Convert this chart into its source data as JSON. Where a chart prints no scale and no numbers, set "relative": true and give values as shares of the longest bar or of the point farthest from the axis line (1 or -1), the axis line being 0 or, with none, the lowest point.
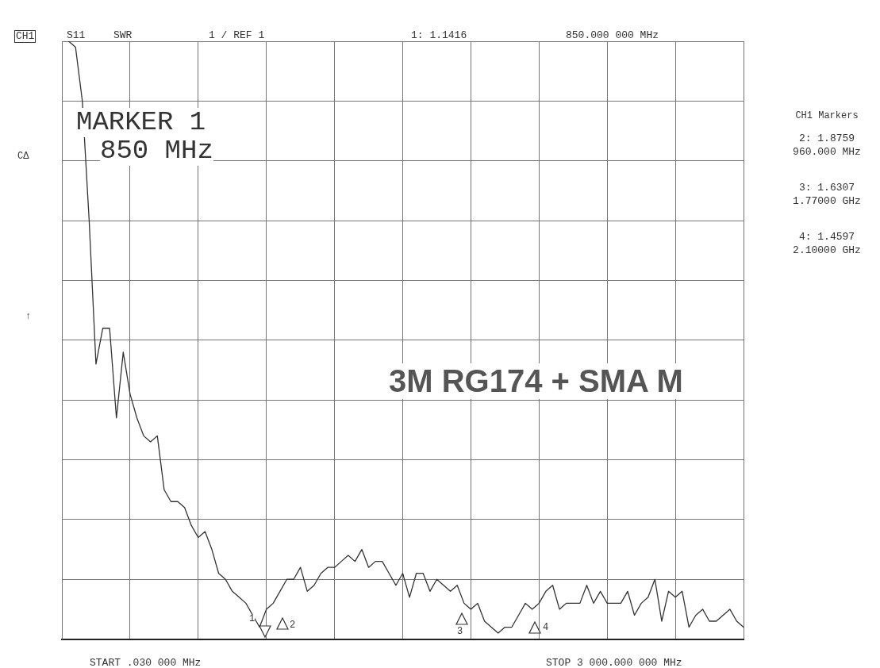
{
  "chart_data": {
    "type": "line",
    "title": "3M RG174 + SMA M",
    "relative": true,
    "grid": true,
    "categories": [
      null,
      null,
      null,
      null,
      null,
      null,
      null,
      null,
      null,
      null,
      null,
      null,
      null,
      null,
      null,
      null,
      null,
      null,
      null,
      null,
      null,
      null,
      null,
      null,
      null,
      null,
      null,
      null,
      null,
      null,
      null,
      null,
      null,
      null,
      null,
      null,
      null,
      null,
      null,
      null,
      null,
      null,
      null,
      null,
      null,
      null,
      null,
      null,
      null,
      null,
      null,
      null,
      null,
      null,
      null,
      null,
      null,
      null,
      null,
      null,
      null,
      null,
      null,
      null,
      null,
      null,
      null,
      null,
      null,
      null,
      null,
      null,
      null,
      null,
      null,
      null,
      null,
      null,
      null,
      null,
      null,
      null,
      null,
      null,
      null,
      null,
      null,
      null,
      null,
      null,
      null,
      null,
      null,
      null,
      null,
      null,
      null,
      null,
      null,
      null,
      null
    ],
    "series": [
      {
        "color": "#333333",
        "values": [
          null,
          1.0,
          0.99,
          0.9,
          0.7,
          0.46,
          0.52,
          0.52,
          0.37,
          0.48,
          0.41,
          0.37,
          0.34,
          0.33,
          0.34,
          0.25,
          0.23,
          0.23,
          0.22,
          0.19,
          0.17,
          0.18,
          0.15,
          0.11,
          0.1,
          0.08,
          0.07,
          0.06,
          0.04,
          0.02,
          0.05,
          0.06,
          0.08,
          0.1,
          0.1,
          0.12,
          0.08,
          0.09,
          0.11,
          0.12,
          0.12,
          0.13,
          0.14,
          0.13,
          0.15,
          0.12,
          0.13,
          0.13,
          0.11,
          0.09,
          0.11,
          0.07,
          0.11,
          0.11,
          0.08,
          0.1,
          0.09,
          0.08,
          0.09,
          0.06,
          0.05,
          0.06,
          0.03,
          0.02,
          0.01,
          0.02,
          0.02,
          0.04,
          0.06,
          0.05,
          0.06,
          0.08,
          0.09,
          0.05,
          0.06,
          0.06,
          0.06,
          0.09,
          0.06,
          0.08,
          0.06,
          0.06,
          0.06,
          0.08,
          0.04,
          0.06,
          0.07,
          0.1,
          0.03,
          0.08,
          0.07,
          0.08,
          0.02,
          0.04,
          0.05,
          0.03,
          0.03,
          0.04,
          0.05,
          0.03,
          0.02
        ]
      }
    ],
    "annotations": [
      "CH1",
      "S11",
      "SWR",
      "1 / REF 1",
      "1: 1.1416",
      "850.000 000 MHz",
      "MARKER 1",
      "850 MHz",
      "CH1 Markers",
      "2: 1.8759",
      "960.000 MHz",
      "3: 1.6307",
      "1.77000 GHz",
      "4: 1.4597",
      "2.10000 GHz",
      "CΔ",
      "↑",
      "START .030 000 MHz",
      "STOP 3 000.000 000 MHz",
      "1",
      "2",
      "3",
      "4"
    ]
  }
}
